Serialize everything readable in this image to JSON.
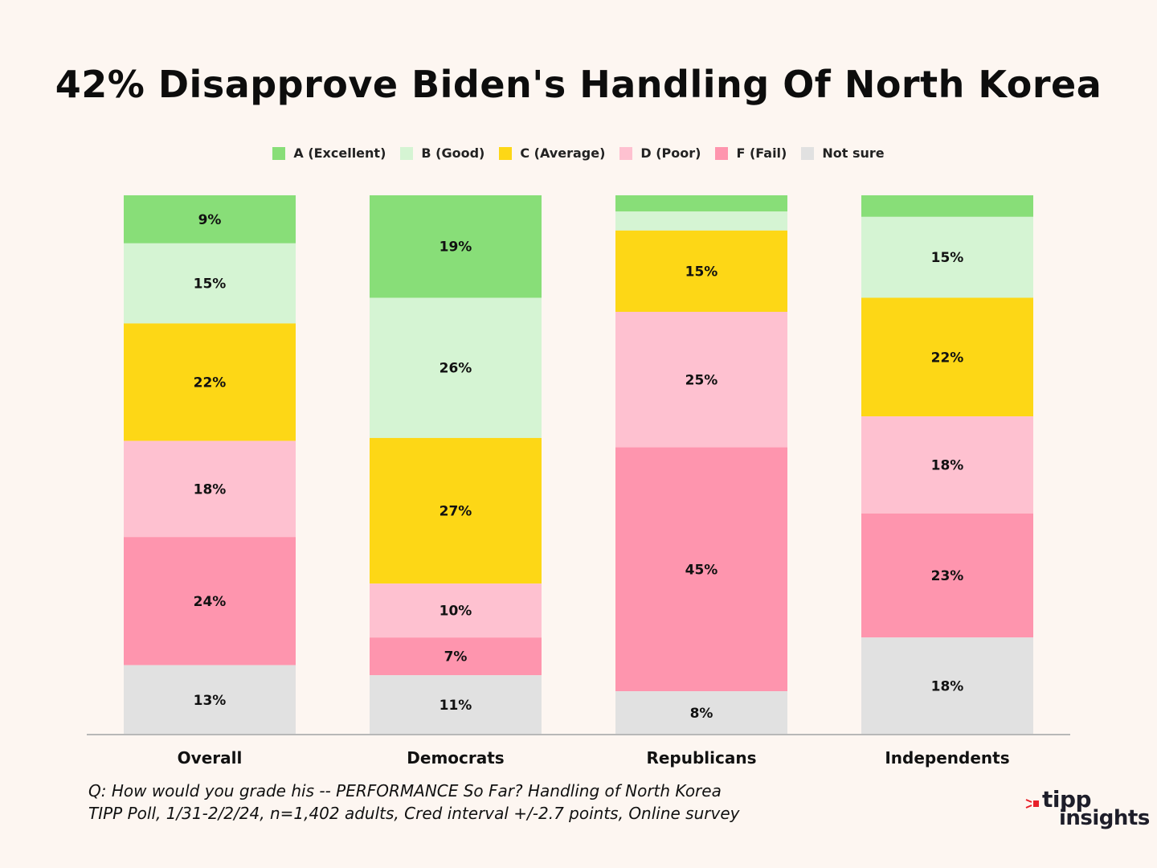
{
  "chart_data": {
    "type": "bar",
    "stacked": true,
    "orientation": "vertical",
    "title": "42% Disapprove Biden's Handling Of North Korea",
    "categories": [
      "Overall",
      "Democrats",
      "Republicans",
      "Independents"
    ],
    "series": [
      {
        "name": "A (Excellent)",
        "color": "#88de78",
        "values": [
          9,
          19,
          3,
          4
        ],
        "labels": [
          "9%",
          "19%",
          "",
          ""
        ]
      },
      {
        "name": "B (Good)",
        "color": "#d5f4d3",
        "values": [
          15,
          26,
          3.5,
          15
        ],
        "labels": [
          "15%",
          "26%",
          "",
          "15%"
        ]
      },
      {
        "name": "C (Average)",
        "color": "#fdd716",
        "values": [
          22,
          27,
          15,
          22
        ],
        "labels": [
          "22%",
          "27%",
          "15%",
          "22%"
        ]
      },
      {
        "name": "D (Poor)",
        "color": "#fec1d0",
        "values": [
          18,
          10,
          25,
          18
        ],
        "labels": [
          "18%",
          "10%",
          "25%",
          "18%"
        ]
      },
      {
        "name": "F (Fail)",
        "color": "#fe95ae",
        "values": [
          24,
          7,
          45,
          23
        ],
        "labels": [
          "24%",
          "7%",
          "45%",
          "23%"
        ]
      },
      {
        "name": "Not sure",
        "color": "#e1e1e1",
        "values": [
          13,
          11,
          8,
          18
        ],
        "labels": [
          "13%",
          "11%",
          "8%",
          "18%"
        ]
      }
    ],
    "xlabel": "",
    "ylabel": "",
    "ylim": [
      0,
      100
    ],
    "grid": false,
    "legend_position": "top-center"
  },
  "notes": {
    "line1": "Q:  How would you grade his -- PERFORMANCE So Far?  Handling of North Korea",
    "line2": "TIPP Poll, 1/31-2/2/24, n=1,402 adults, Cred interval +/-2.7 points, Online survey"
  },
  "logo": {
    "word1": "tipp",
    "word2": "insights",
    "accent_color": "#e8202a"
  }
}
